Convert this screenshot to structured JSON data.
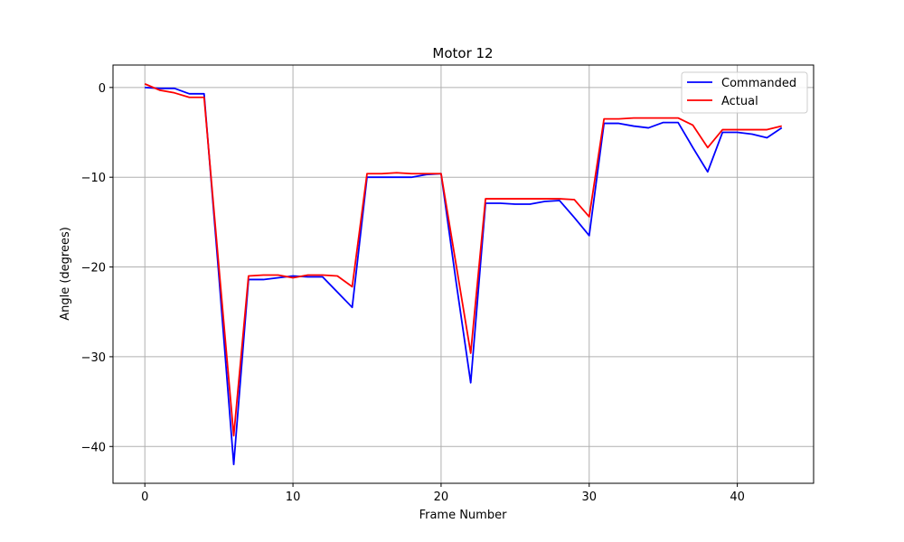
{
  "chart_data": {
    "type": "line",
    "title": "Motor 12",
    "xlabel": "Frame Number",
    "ylabel": "Angle (degrees)",
    "xlim": [
      -2.15,
      45.15
    ],
    "ylim": [
      -44.1,
      2.5
    ],
    "xticks": [
      0,
      10,
      20,
      30,
      40
    ],
    "yticks": [
      0,
      -10,
      -20,
      -30,
      -40
    ],
    "xtick_labels": [
      "0",
      "10",
      "20",
      "30",
      "40"
    ],
    "ytick_labels": [
      "0",
      "−10",
      "−20",
      "−30",
      "−40"
    ],
    "grid": true,
    "legend_position": "upper right",
    "x": [
      0,
      1,
      2,
      3,
      4,
      5,
      6,
      7,
      8,
      9,
      10,
      11,
      12,
      13,
      14,
      15,
      16,
      17,
      18,
      19,
      20,
      21,
      22,
      23,
      24,
      25,
      26,
      27,
      28,
      29,
      30,
      31,
      32,
      33,
      34,
      35,
      36,
      37,
      38,
      39,
      40,
      41,
      42,
      43
    ],
    "series": [
      {
        "name": "Commanded",
        "color": "#0000ff",
        "values": [
          0.0,
          -0.1,
          -0.1,
          -0.7,
          -0.7,
          -21.0,
          -42.0,
          -21.4,
          -21.4,
          -21.2,
          -21.0,
          -21.1,
          -21.1,
          -22.8,
          -24.5,
          -10.0,
          -10.0,
          -10.0,
          -10.0,
          -9.7,
          -9.6,
          -21.5,
          -32.9,
          -12.9,
          -12.9,
          -13.0,
          -13.0,
          -12.7,
          -12.6,
          -14.5,
          -16.5,
          -4.0,
          -4.0,
          -4.3,
          -4.5,
          -3.9,
          -3.9,
          -6.7,
          -9.4,
          -5.0,
          -5.0,
          -5.2,
          -5.6,
          -4.5
        ]
      },
      {
        "name": "Actual",
        "color": "#ff0000",
        "values": [
          0.4,
          -0.3,
          -0.6,
          -1.1,
          -1.1,
          -20.0,
          -38.8,
          -21.0,
          -20.9,
          -20.9,
          -21.2,
          -20.9,
          -20.9,
          -21.0,
          -22.2,
          -9.6,
          -9.6,
          -9.5,
          -9.6,
          -9.6,
          -9.6,
          -19.6,
          -29.6,
          -12.4,
          -12.4,
          -12.4,
          -12.4,
          -12.4,
          -12.4,
          -12.5,
          -14.4,
          -3.5,
          -3.5,
          -3.4,
          -3.4,
          -3.4,
          -3.4,
          -4.2,
          -6.7,
          -4.7,
          -4.7,
          -4.7,
          -4.7,
          -4.3
        ]
      }
    ]
  },
  "colors": {
    "grid": "#b0b0b0",
    "axes": "#000000",
    "background": "#ffffff"
  }
}
